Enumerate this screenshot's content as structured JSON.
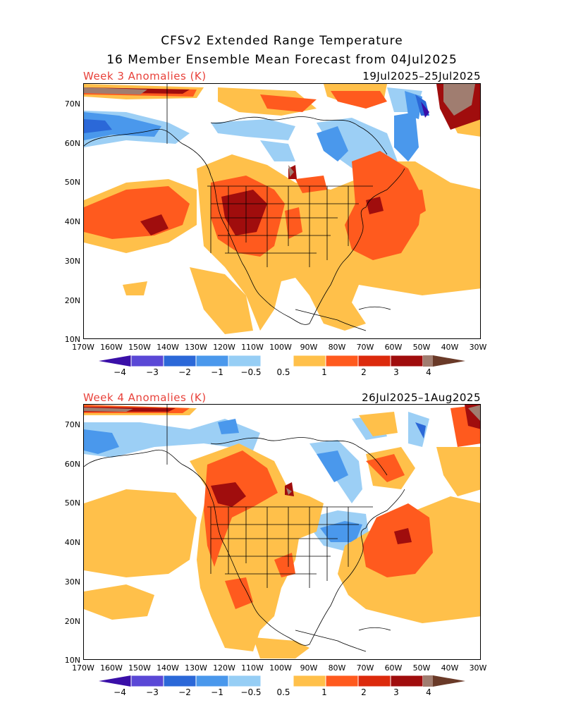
{
  "title": {
    "line1": "CFSv2 Extended Range Temperature",
    "line2": "16 Member Ensemble Mean Forecast from 04Jul2025"
  },
  "panels": [
    {
      "label": "Week 3 Anomalies (K)",
      "dates": "19Jul2025–25Jul2025"
    },
    {
      "label": "Week 4 Anomalies (K)",
      "dates": "26Jul2025–1Aug2025"
    }
  ],
  "axes": {
    "lat_labels": [
      "70N",
      "60N",
      "50N",
      "40N",
      "30N",
      "20N",
      "10N"
    ],
    "lon_labels": [
      "170W",
      "160W",
      "150W",
      "140W",
      "130W",
      "120W",
      "110W",
      "100W",
      "90W",
      "80W",
      "70W",
      "60W",
      "50W",
      "40W",
      "30W"
    ]
  },
  "colorbar": {
    "unit": "K",
    "labels": [
      "−4",
      "−3",
      "−2",
      "−1",
      "−0.5",
      "0.5",
      "1",
      "2",
      "3",
      "4"
    ],
    "colors": [
      "#3a0fa8",
      "#5a48d6",
      "#2b68d8",
      "#4a98ec",
      "#96cef5",
      "#ffffff",
      "#ffc04a",
      "#ff5a1e",
      "#dc2a0c",
      "#a00d0d",
      "#a07d70",
      "#6a3a28"
    ]
  },
  "colors": {
    "subtitle_red": "#e8413a",
    "light_blue": "#9ccff5",
    "mid_blue": "#4a98ec",
    "dark_blue": "#2b68d8",
    "deep_blue": "#3a0fa8",
    "yellow": "#ffc04a",
    "orange": "#ff5a1e",
    "red": "#dc2a0c",
    "dark_red": "#a00d0d",
    "brown": "#a07d70"
  }
}
